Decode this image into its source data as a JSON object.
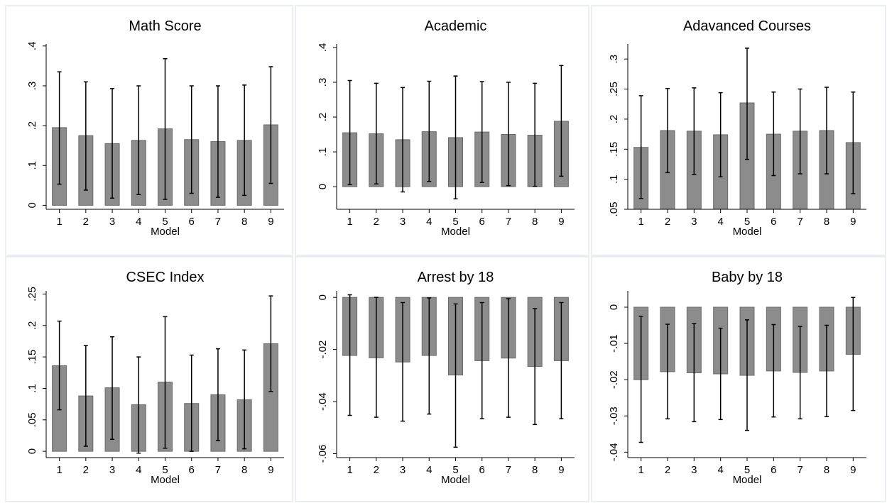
{
  "chart_data": [
    {
      "type": "bar",
      "title": "Math Score",
      "xlabel": "Model",
      "ylabel": "",
      "categories": [
        "1",
        "2",
        "3",
        "4",
        "5",
        "6",
        "7",
        "8",
        "9"
      ],
      "values": [
        0.195,
        0.175,
        0.155,
        0.163,
        0.192,
        0.165,
        0.16,
        0.163,
        0.202
      ],
      "ci_low": [
        0.053,
        0.038,
        0.018,
        0.027,
        0.015,
        0.03,
        0.02,
        0.025,
        0.055
      ],
      "ci_high": [
        0.335,
        0.31,
        0.293,
        0.3,
        0.368,
        0.3,
        0.3,
        0.302,
        0.348
      ],
      "base": 0,
      "ylim": [
        -0.01,
        0.405
      ],
      "yticks": [
        0,
        0.1,
        0.2,
        0.3,
        0.4
      ],
      "ytick_labels": [
        "0",
        ".1",
        ".2",
        ".3",
        ".4"
      ],
      "bar_color": "#8c8c8c",
      "grid": false
    },
    {
      "type": "bar",
      "title": "Academic",
      "xlabel": "Model",
      "ylabel": "",
      "categories": [
        "1",
        "2",
        "3",
        "4",
        "5",
        "6",
        "7",
        "8",
        "9"
      ],
      "values": [
        0.155,
        0.152,
        0.135,
        0.158,
        0.141,
        0.157,
        0.15,
        0.148,
        0.188
      ],
      "ci_low": [
        0.006,
        0.008,
        -0.015,
        0.015,
        -0.035,
        0.012,
        0.003,
        0.001,
        0.03
      ],
      "ci_high": [
        0.305,
        0.297,
        0.285,
        0.303,
        0.318,
        0.302,
        0.3,
        0.297,
        0.348
      ],
      "base": 0,
      "ylim": [
        -0.065,
        0.41
      ],
      "yticks": [
        0,
        0.1,
        0.2,
        0.3,
        0.4
      ],
      "ytick_labels": [
        "0",
        ".1",
        ".2",
        ".3",
        ".4"
      ],
      "bar_color": "#8c8c8c",
      "grid": false
    },
    {
      "type": "bar",
      "title": "Adavanced Courses",
      "xlabel": "Model",
      "ylabel": "",
      "categories": [
        "1",
        "2",
        "3",
        "4",
        "5",
        "6",
        "7",
        "8",
        "9"
      ],
      "values": [
        0.153,
        0.181,
        0.18,
        0.174,
        0.227,
        0.175,
        0.18,
        0.181,
        0.161
      ],
      "ci_low": [
        0.068,
        0.111,
        0.108,
        0.104,
        0.133,
        0.106,
        0.109,
        0.109,
        0.076
      ],
      "ci_high": [
        0.239,
        0.251,
        0.252,
        0.244,
        0.318,
        0.245,
        0.25,
        0.253,
        0.245
      ],
      "base": 0.05,
      "ylim": [
        0.05,
        0.325
      ],
      "yticks": [
        0.05,
        0.1,
        0.15,
        0.2,
        0.25,
        0.3
      ],
      "ytick_labels": [
        ".05",
        ".1",
        ".15",
        ".2",
        ".25",
        ".3"
      ],
      "bar_color": "#8c8c8c",
      "grid": false
    },
    {
      "type": "bar",
      "title": "CSEC Index",
      "xlabel": "Model",
      "ylabel": "",
      "categories": [
        "1",
        "2",
        "3",
        "4",
        "5",
        "6",
        "7",
        "8",
        "9"
      ],
      "values": [
        0.136,
        0.088,
        0.101,
        0.074,
        0.11,
        0.076,
        0.09,
        0.082,
        0.171
      ],
      "ci_low": [
        0.066,
        0.008,
        0.019,
        -0.003,
        0.005,
        0.0,
        0.017,
        0.004,
        0.095
      ],
      "ci_high": [
        0.207,
        0.168,
        0.182,
        0.15,
        0.214,
        0.153,
        0.163,
        0.161,
        0.247
      ],
      "base": 0,
      "ylim": [
        -0.01,
        0.255
      ],
      "yticks": [
        0,
        0.05,
        0.1,
        0.15,
        0.2,
        0.25
      ],
      "ytick_labels": [
        "0",
        ".05",
        ".1",
        ".15",
        ".2",
        ".25"
      ],
      "bar_color": "#8c8c8c",
      "grid": false
    },
    {
      "type": "bar",
      "title": "Arrest by 18",
      "xlabel": "Model",
      "ylabel": "",
      "categories": [
        "1",
        "2",
        "3",
        "4",
        "5",
        "6",
        "7",
        "8",
        "9"
      ],
      "values": [
        -0.0223,
        -0.0232,
        -0.0248,
        -0.0223,
        -0.0298,
        -0.0243,
        -0.0233,
        -0.0265,
        -0.0243
      ],
      "ci_low": [
        -0.0453,
        -0.046,
        -0.0475,
        -0.0448,
        -0.0575,
        -0.0466,
        -0.046,
        -0.0488,
        -0.0466
      ],
      "ci_high": [
        0.001,
        0.0,
        -0.002,
        -0.0002,
        -0.0025,
        -0.002,
        -0.0005,
        -0.0043,
        -0.002
      ],
      "base": 0,
      "ylim": [
        -0.0615,
        0.0025
      ],
      "yticks": [
        0,
        -0.02,
        -0.04,
        -0.06
      ],
      "ytick_labels": [
        "0",
        "-.02",
        "-.04",
        "-.06"
      ],
      "bar_color": "#8c8c8c",
      "grid": false
    },
    {
      "type": "bar",
      "title": "Baby by 18",
      "xlabel": "Model",
      "ylabel": "",
      "categories": [
        "1",
        "2",
        "3",
        "4",
        "5",
        "6",
        "7",
        "8",
        "9"
      ],
      "values": [
        -0.02,
        -0.0178,
        -0.0181,
        -0.0184,
        -0.0188,
        -0.0176,
        -0.018,
        -0.0176,
        -0.013
      ],
      "ci_low": [
        -0.0373,
        -0.0308,
        -0.0316,
        -0.031,
        -0.034,
        -0.0303,
        -0.0308,
        -0.0302,
        -0.0285
      ],
      "ci_high": [
        -0.0025,
        -0.0047,
        -0.0045,
        -0.0058,
        -0.0035,
        -0.0048,
        -0.0053,
        -0.005,
        0.0027
      ],
      "base": 0,
      "ylim": [
        -0.0415,
        0.0045
      ],
      "yticks": [
        0,
        -0.01,
        -0.02,
        -0.03,
        -0.04
      ],
      "ytick_labels": [
        "0",
        "-.01",
        "-.02",
        "-.03",
        "-.04"
      ],
      "bar_color": "#8c8c8c",
      "grid": false
    }
  ]
}
